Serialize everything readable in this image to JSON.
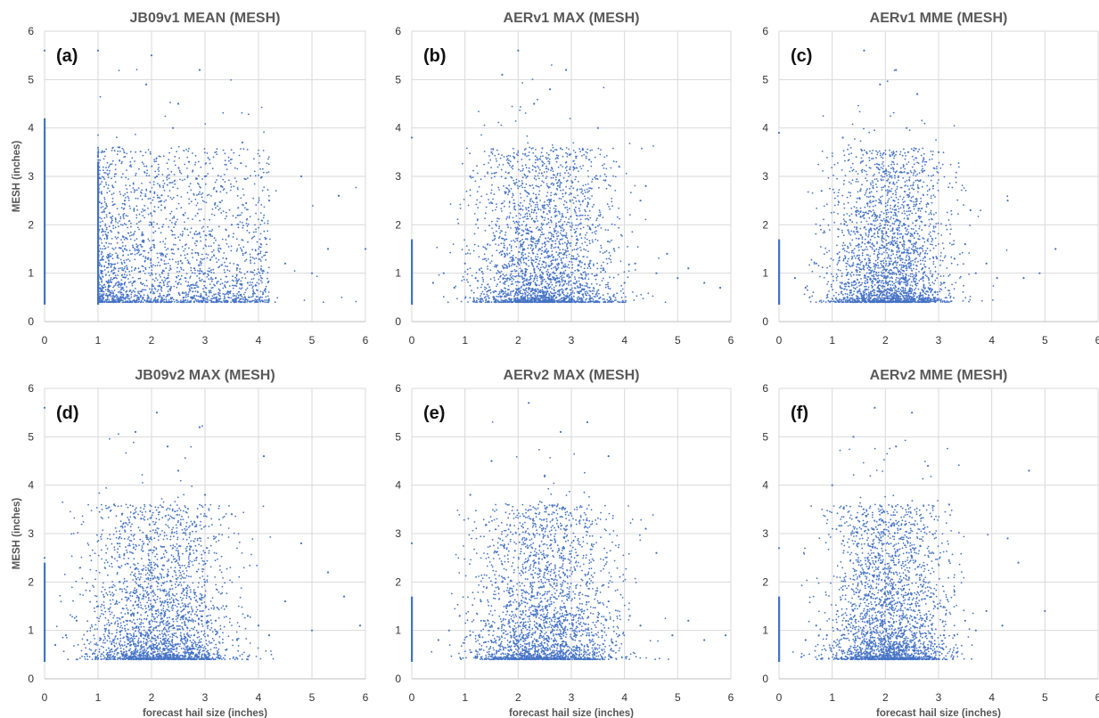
{
  "chart_data": [
    {
      "type": "scatter",
      "panel_label": "(a)",
      "title": "JB09v1 MEAN (MESH)",
      "xlabel": "",
      "ylabel": "MESH (inches)",
      "xlim": [
        0,
        6
      ],
      "ylim": [
        0,
        6
      ],
      "xticks": [
        "0",
        "1",
        "2",
        "3",
        "4",
        "5",
        "6"
      ],
      "yticks": [
        "0",
        "1",
        "2",
        "3",
        "4",
        "5",
        "6"
      ],
      "grid": true,
      "color": "#4472C4",
      "points_description": "forecast hail size vs MESH; dense cloud at x 1–3.8, y 0.4–2.5; vertical columns at x=0 and x=1; sparse points to x~6 and y~5.7",
      "x": [
        0,
        0,
        0,
        0,
        0,
        1,
        1,
        1,
        1,
        1,
        1.1,
        1.2,
        1.3,
        1.5,
        1.5,
        1.7,
        1.8,
        2,
        2,
        2.1,
        2.2,
        2.3,
        2.5,
        2.5,
        2.6,
        2.8,
        3,
        3,
        3.1,
        3.2,
        3.4,
        3.5,
        3.6,
        3.8,
        4,
        4.2,
        4.5,
        4.8,
        5,
        5.3,
        5.5,
        6,
        2,
        2.4,
        2.9,
        1.4,
        3.3,
        1.9,
        2.7,
        3.7
      ],
      "y": [
        0.4,
        1,
        2,
        3.5,
        5.6,
        0.4,
        1,
        2,
        3,
        5.6,
        0.7,
        1.2,
        0.9,
        1.5,
        2.5,
        1.1,
        0.8,
        1,
        2,
        3,
        1.4,
        0.9,
        1.5,
        4.5,
        2.2,
        1.1,
        1,
        3,
        1.8,
        0.9,
        1.3,
        2,
        1.1,
        0.8,
        1.4,
        2.5,
        1.2,
        3,
        1,
        1.5,
        2.6,
        1.5,
        5.5,
        4,
        5.2,
        3.6,
        2.8,
        4.9,
        3.3,
        3.7
      ]
    },
    {
      "type": "scatter",
      "panel_label": "(b)",
      "title": "AERv1 MAX (MESH)",
      "xlabel": "",
      "ylabel": "",
      "xlim": [
        0,
        6
      ],
      "ylim": [
        0,
        6
      ],
      "xticks": [
        "0",
        "1",
        "2",
        "3",
        "4",
        "5",
        "6"
      ],
      "yticks": [
        "0",
        "1",
        "2",
        "3",
        "4",
        "5",
        "6"
      ],
      "grid": true,
      "color": "#4472C4",
      "x": [
        0,
        0,
        0,
        0.4,
        0.6,
        0.8,
        1,
        1.2,
        1.4,
        1.6,
        1.8,
        2,
        2.2,
        2.4,
        2.6,
        2.8,
        3,
        3.2,
        3.4,
        3.6,
        3.8,
        4,
        4.2,
        4.4,
        4.6,
        4.8,
        5,
        5.2,
        5.5,
        5.8,
        1.5,
        2.3,
        2.9,
        3.5,
        2,
        1.1,
        3.9,
        4.3,
        2.6,
        1.7
      ],
      "y": [
        0.4,
        1.5,
        3.8,
        0.8,
        1,
        0.7,
        1.2,
        0.9,
        1.5,
        1,
        2,
        1.2,
        0.8,
        1.5,
        2.5,
        1,
        1.3,
        0.9,
        2,
        1.1,
        1.5,
        0.8,
        1.2,
        2.8,
        1,
        1.4,
        0.9,
        1.1,
        0.8,
        0.7,
        3.5,
        4.5,
        5.2,
        4,
        5.6,
        3,
        3.2,
        2.5,
        4.8,
        5.1
      ]
    },
    {
      "type": "scatter",
      "panel_label": "(c)",
      "title": "AERv1 MME (MESH)",
      "xlabel": "",
      "ylabel": "",
      "xlim": [
        0,
        6
      ],
      "ylim": [
        0,
        6
      ],
      "xticks": [
        "0",
        "1",
        "2",
        "3",
        "4",
        "5",
        "6"
      ],
      "yticks": [
        "0",
        "1",
        "2",
        "3",
        "4",
        "5",
        "6"
      ],
      "grid": true,
      "color": "#4472C4",
      "x": [
        0,
        0,
        0,
        0.3,
        0.5,
        0.7,
        0.9,
        1.1,
        1.3,
        1.5,
        1.7,
        1.9,
        2.1,
        2.3,
        2.5,
        2.7,
        2.9,
        3.1,
        3.3,
        3.5,
        3.7,
        3.9,
        4.1,
        4.3,
        4.6,
        4.9,
        5.2,
        1.6,
        2.2,
        2.6,
        1.2,
        3,
        1.9,
        2.4,
        0.8,
        3.6
      ],
      "y": [
        0.4,
        1.5,
        3.9,
        0.9,
        0.7,
        1.2,
        1,
        1.4,
        0.8,
        1.6,
        1,
        2.2,
        1.3,
        0.9,
        1.8,
        1.1,
        2.8,
        0.8,
        1.3,
        1.6,
        1,
        1.2,
        0.9,
        2.5,
        0.9,
        1,
        1.5,
        5.6,
        5.2,
        4.7,
        3.8,
        3.5,
        4.9,
        4,
        2.7,
        2.3
      ]
    },
    {
      "type": "scatter",
      "panel_label": "(d)",
      "title": "JB09v2 MAX (MESH)",
      "xlabel": "forecast hail size (inches)",
      "ylabel": "MESH (inches)",
      "xlim": [
        0,
        6
      ],
      "ylim": [
        0,
        6
      ],
      "xticks": [
        "0",
        "1",
        "2",
        "3",
        "4",
        "5",
        "6"
      ],
      "yticks": [
        "0",
        "1",
        "2",
        "3",
        "4",
        "5",
        "6"
      ],
      "grid": true,
      "color": "#4472C4",
      "x": [
        0,
        0,
        0,
        0,
        0.2,
        0.4,
        0.6,
        0.8,
        1,
        1.2,
        1.4,
        1.6,
        1.8,
        2,
        2.2,
        2.4,
        2.6,
        2.8,
        3,
        3.2,
        3.4,
        3.6,
        3.8,
        4,
        4.2,
        4.5,
        4.8,
        5,
        5.3,
        5.6,
        5.9,
        1.7,
        2.1,
        2.5,
        3,
        2.9,
        1.3,
        3.5,
        4.1,
        2.3
      ],
      "y": [
        0.4,
        1,
        2.5,
        5.6,
        0.7,
        0.9,
        1.2,
        0.8,
        1.5,
        1,
        2,
        1.2,
        0.9,
        1.5,
        2.5,
        1.1,
        1.3,
        0.9,
        2,
        1.2,
        1.5,
        0.8,
        1.3,
        1.1,
        0.9,
        1.6,
        2.8,
        1,
        2.2,
        1.7,
        1.1,
        5.1,
        5.5,
        4.3,
        3.8,
        5.2,
        3.6,
        3.4,
        4.6,
        4.8
      ]
    },
    {
      "type": "scatter",
      "panel_label": "(e)",
      "title": "AERv2 MAX  (MESH)",
      "xlabel": "forecast hail size (inches)",
      "ylabel": "",
      "xlim": [
        0,
        6
      ],
      "ylim": [
        0,
        6
      ],
      "xticks": [
        "0",
        "1",
        "2",
        "3",
        "4",
        "5",
        "6"
      ],
      "yticks": [
        "0",
        "1",
        "2",
        "3",
        "4",
        "5",
        "6"
      ],
      "grid": true,
      "color": "#4472C4",
      "x": [
        0,
        0,
        0,
        0.5,
        0.7,
        0.9,
        1.1,
        1.3,
        1.5,
        1.7,
        1.9,
        2.1,
        2.3,
        2.5,
        2.7,
        2.9,
        3.1,
        3.3,
        3.5,
        3.7,
        3.9,
        4.1,
        4.3,
        4.6,
        4.9,
        5.2,
        5.5,
        5.9,
        2.2,
        2.8,
        3.3,
        1.5,
        3.7,
        2.5,
        1.1,
        4.4
      ],
      "y": [
        0.4,
        1.5,
        2.8,
        0.8,
        1,
        1.3,
        0.9,
        1.6,
        1.1,
        2,
        1.2,
        0.9,
        1.5,
        2.5,
        1.1,
        1.4,
        0.9,
        2,
        1.2,
        1.6,
        0.9,
        1.3,
        1.1,
        2.6,
        0.9,
        1.2,
        0.8,
        0.9,
        5.7,
        5.1,
        5.3,
        4.5,
        4.6,
        4.2,
        3.8,
        3.1
      ]
    },
    {
      "type": "scatter",
      "panel_label": "(f)",
      "title": "AERv2 MME (MESH)",
      "xlabel": "forecast hail size (inches)",
      "ylabel": "",
      "xlim": [
        0,
        6
      ],
      "ylim": [
        0,
        6
      ],
      "xticks": [
        "0",
        "1",
        "2",
        "3",
        "4",
        "5",
        "6"
      ],
      "yticks": [
        "0",
        "1",
        "2",
        "3",
        "4",
        "5",
        "6"
      ],
      "grid": true,
      "color": "#4472C4",
      "x": [
        0,
        0,
        0,
        0.5,
        0.7,
        0.9,
        1.1,
        1.3,
        1.5,
        1.7,
        1.9,
        2.1,
        2.3,
        2.5,
        2.7,
        2.9,
        3.1,
        3.3,
        3.5,
        3.7,
        3.9,
        4.2,
        4.5,
        4.7,
        5,
        1.8,
        2.5,
        1.4,
        2.2,
        1,
        3.2,
        2.8,
        1.6,
        4.3
      ],
      "y": [
        0.4,
        1.5,
        2.7,
        0.8,
        1.1,
        0.9,
        1.4,
        1,
        1.7,
        1.2,
        2.2,
        0.9,
        1.5,
        2.5,
        1.1,
        1.3,
        0.9,
        1.8,
        1.2,
        1,
        1.4,
        1.1,
        2.4,
        4.3,
        1.4,
        5.6,
        5.5,
        5,
        4.8,
        4,
        3.6,
        4.4,
        3.2,
        2.9
      ]
    }
  ]
}
